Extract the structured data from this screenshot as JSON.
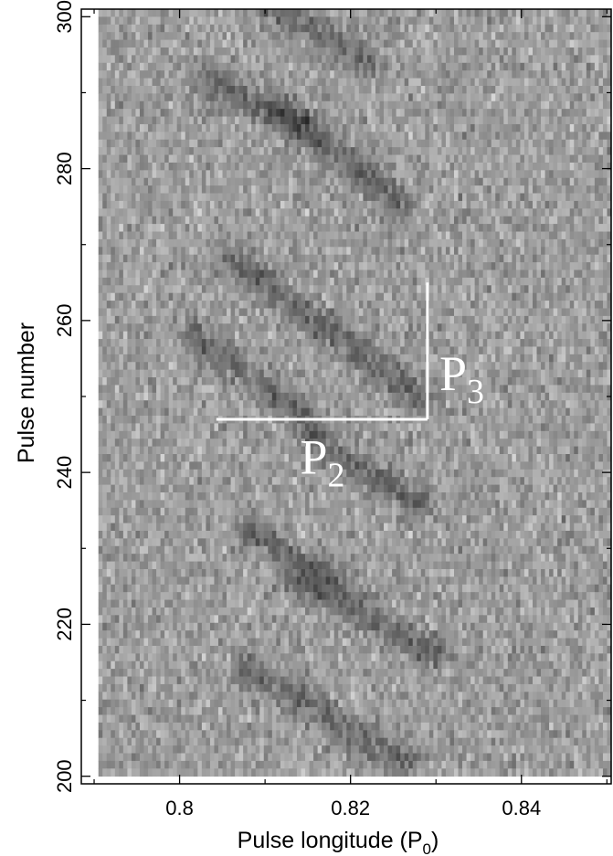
{
  "chart_data": {
    "type": "heatmap",
    "title": "",
    "xlabel": "Pulse longitude (P",
    "xlabel_subscript": "0",
    "xlabel_close": ")",
    "ylabel": "Pulse number",
    "xlim": [
      0.7885,
      0.8505
    ],
    "ylim": [
      199,
      301
    ],
    "data_xlim": [
      0.7905,
      0.8505
    ],
    "data_ylim": [
      200,
      301
    ],
    "x_ticks": [
      {
        "value": 0.8,
        "label": "0.8"
      },
      {
        "value": 0.82,
        "label": "0.82"
      },
      {
        "value": 0.84,
        "label": "0.84"
      }
    ],
    "y_ticks": [
      {
        "value": 200,
        "label": "200"
      },
      {
        "value": 220,
        "label": "220"
      },
      {
        "value": 240,
        "label": "240"
      },
      {
        "value": 260,
        "label": "260"
      },
      {
        "value": 280,
        "label": "280"
      },
      {
        "value": 300,
        "label": "300"
      }
    ],
    "x_minor_step": 0.01,
    "y_minor_step": 10,
    "colormap": "grayscale (darker = brighter emission)",
    "grid": false,
    "drift_bands": [
      {
        "start": [
          0.81,
          302
        ],
        "end": [
          0.822,
          294
        ]
      },
      {
        "start": [
          0.803,
          292
        ],
        "end": [
          0.815,
          285
        ]
      },
      {
        "start": [
          0.812,
          288
        ],
        "end": [
          0.826,
          275
        ]
      },
      {
        "start": [
          0.806,
          268
        ],
        "end": [
          0.828,
          250
        ]
      },
      {
        "start": [
          0.802,
          258
        ],
        "end": [
          0.815,
          247
        ]
      },
      {
        "start": [
          0.816,
          244
        ],
        "end": [
          0.828,
          236
        ]
      },
      {
        "start": [
          0.808,
          232
        ],
        "end": [
          0.818,
          226
        ]
      },
      {
        "start": [
          0.814,
          226
        ],
        "end": [
          0.83,
          216
        ]
      },
      {
        "start": [
          0.808,
          214
        ],
        "end": [
          0.826,
          202
        ]
      }
    ],
    "annotations": [
      {
        "label": "P",
        "subscript": "2",
        "type": "horizontal-bracket",
        "from": [
          0.8043,
          247
        ],
        "to": [
          0.829,
          247
        ],
        "text_at": [
          0.8141,
          242
        ]
      },
      {
        "label": "P",
        "subscript": "3",
        "type": "vertical-bracket",
        "from": [
          0.829,
          247
        ],
        "to": [
          0.829,
          265
        ],
        "text_at": [
          0.8304,
          253
        ]
      }
    ],
    "annotation_color": "#ffffff"
  }
}
